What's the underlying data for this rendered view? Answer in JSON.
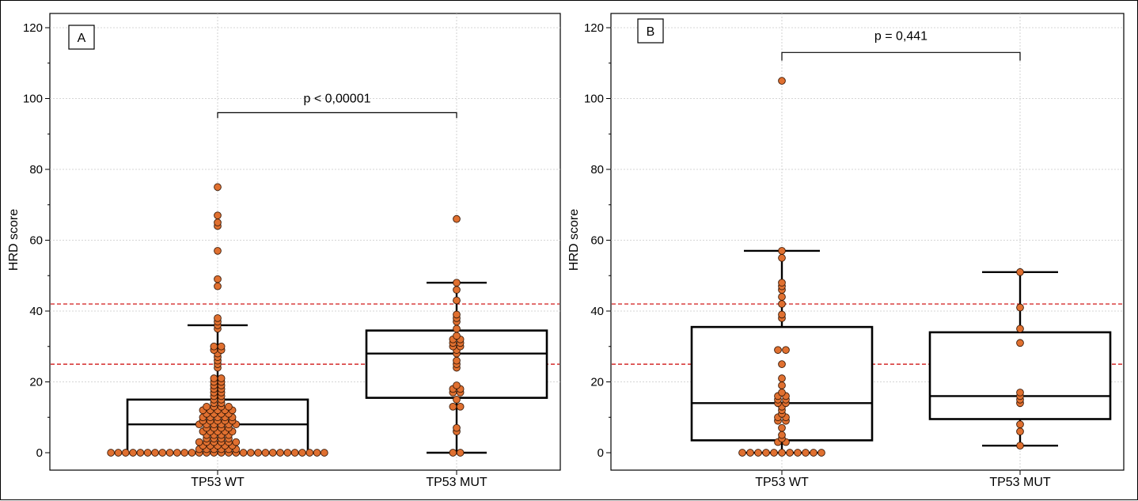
{
  "chart_data": [
    {
      "type": "box",
      "panel_label": "A",
      "ylabel": "HRD score",
      "ylim": [
        0,
        120
      ],
      "yticks": [
        0,
        20,
        40,
        60,
        80,
        100,
        120
      ],
      "categories": [
        "TP53 WT",
        "TP53 MUT"
      ],
      "reference_lines": [
        25,
        42
      ],
      "grid": true,
      "annotation": "p < 0,00001",
      "boxes": [
        {
          "category": "TP53 WT",
          "whisker_low": 0,
          "q1": 0,
          "median": 8,
          "q3": 15,
          "whisker_high": 36
        },
        {
          "category": "TP53 MUT",
          "whisker_low": 0,
          "q1": 15.5,
          "median": 28,
          "q3": 34.5,
          "whisker_high": 48
        }
      ],
      "points": [
        {
          "category": "TP53 WT",
          "values": [
            75,
            67,
            65,
            64,
            57,
            49,
            47,
            38,
            37,
            36,
            35,
            30,
            30,
            29,
            29,
            28,
            27,
            26,
            25,
            24,
            21,
            21,
            20,
            20,
            19,
            19,
            18,
            18,
            17,
            17,
            16,
            16,
            15,
            15,
            14,
            14,
            13,
            13,
            13,
            13,
            12,
            12,
            12,
            12,
            12,
            11,
            11,
            11,
            11,
            10,
            10,
            10,
            10,
            10,
            9,
            9,
            9,
            9,
            9,
            8,
            8,
            8,
            8,
            8,
            8,
            7,
            7,
            7,
            7,
            6,
            6,
            6,
            6,
            6,
            5,
            5,
            5,
            5,
            4,
            4,
            4,
            4,
            3,
            3,
            3,
            3,
            3,
            3,
            2,
            2,
            2,
            2,
            2,
            1,
            1,
            1,
            1,
            1,
            1,
            0,
            0,
            0,
            0,
            0,
            0,
            0,
            0,
            0,
            0,
            0,
            0,
            0,
            0,
            0,
            0,
            0,
            0,
            0,
            0,
            0,
            0,
            0,
            0,
            0,
            0,
            0,
            0,
            0,
            0
          ]
        },
        {
          "category": "TP53 MUT",
          "values": [
            66,
            48,
            46,
            43,
            39,
            38,
            37,
            35,
            33,
            32,
            32,
            31,
            31,
            30,
            30,
            29,
            28,
            26,
            25,
            24,
            19,
            18,
            18,
            17,
            17,
            15,
            13,
            13,
            7,
            6,
            0,
            0
          ]
        }
      ]
    },
    {
      "type": "box",
      "panel_label": "B",
      "ylabel": "HRD score",
      "ylim": [
        0,
        120
      ],
      "yticks": [
        0,
        20,
        40,
        60,
        80,
        100,
        120
      ],
      "categories": [
        "TP53 WT",
        "TP53 MUT"
      ],
      "reference_lines": [
        25,
        42
      ],
      "grid": true,
      "annotation": "p = 0,441",
      "boxes": [
        {
          "category": "TP53 WT",
          "whisker_low": 0,
          "q1": 3.5,
          "median": 14,
          "q3": 35.5,
          "whisker_high": 57
        },
        {
          "category": "TP53 MUT",
          "whisker_low": 2,
          "q1": 9.5,
          "median": 16,
          "q3": 34,
          "whisker_high": 51
        }
      ],
      "points": [
        {
          "category": "TP53 WT",
          "values": [
            105,
            57,
            55,
            48,
            47,
            46,
            44,
            42,
            39,
            38,
            29,
            29,
            25,
            21,
            19,
            17,
            16,
            16,
            15,
            15,
            14,
            14,
            13,
            12,
            11,
            10,
            10,
            9,
            9,
            7,
            5,
            4,
            3,
            3,
            0,
            0,
            0,
            0,
            0,
            0,
            0,
            0,
            0,
            0,
            0
          ]
        },
        {
          "category": "TP53 MUT",
          "values": [
            51,
            41,
            35,
            31,
            17,
            16,
            15,
            14,
            8,
            6,
            2
          ]
        }
      ]
    }
  ]
}
